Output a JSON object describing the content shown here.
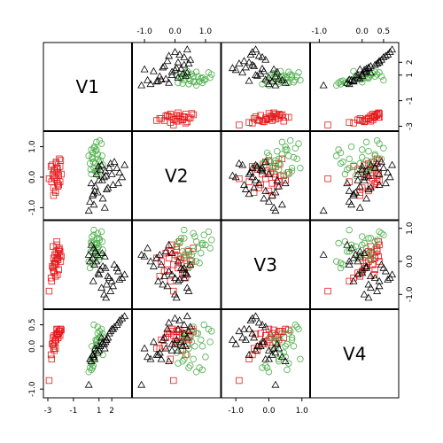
{
  "chart_data": {
    "type": "scatter",
    "matrix": "pairs",
    "variables": [
      "V1",
      "V2",
      "V3",
      "V4"
    ],
    "ranges": {
      "V1": [
        -3.0,
        3.2
      ],
      "V2": [
        -1.25,
        1.35
      ],
      "V3": [
        -1.3,
        1.1
      ],
      "V4": [
        -1.1,
        0.75
      ]
    },
    "axis_ticks": {
      "V1": [
        -3,
        -1,
        1,
        2
      ],
      "V2": [
        -1.0,
        0.0,
        1.0
      ],
      "V3": [
        -1.0,
        0.0,
        1.0
      ],
      "V4": [
        -1.0,
        0.0,
        0.5
      ]
    },
    "tick_labels": {
      "V1": [
        "-3",
        "-1",
        "1",
        "2"
      ],
      "V2": [
        "-1.0",
        "0.0",
        "1.0"
      ],
      "V3": [
        "-1.0",
        "0.0",
        "1.0"
      ],
      "V4": [
        "-1.0",
        "0.0",
        "0.5"
      ]
    },
    "axis_sides": {
      "top": [
        "V2",
        "V4"
      ],
      "right": [
        "V1",
        "V3"
      ],
      "bottom": [
        "V1",
        "V3"
      ],
      "left": [
        "V2",
        "V4"
      ]
    },
    "series": [
      {
        "markers": "square",
        "color": "#e41a1c",
        "points": [
          [
            -2.5,
            -0.05,
            -0.1,
            0.25
          ],
          [
            -2.3,
            0.3,
            0.1,
            0.3
          ],
          [
            -2.2,
            -0.3,
            0.25,
            0.2
          ],
          [
            -2.6,
            0.1,
            -0.2,
            0.05
          ],
          [
            -2.0,
            0.55,
            0.0,
            0.4
          ],
          [
            -2.4,
            -0.5,
            -0.45,
            -0.05
          ],
          [
            -2.15,
            0.05,
            0.35,
            0.35
          ],
          [
            -2.7,
            -0.15,
            -0.6,
            -0.3
          ],
          [
            -2.05,
            0.35,
            0.2,
            0.25
          ],
          [
            -2.45,
            0.2,
            -0.05,
            0.1
          ],
          [
            -2.25,
            -0.2,
            0.1,
            0.3
          ],
          [
            -2.9,
            -0.05,
            -0.9,
            -0.8
          ],
          [
            -2.1,
            0.6,
            0.4,
            0.35
          ],
          [
            -2.35,
            0.45,
            0.3,
            0.15
          ],
          [
            -2.55,
            -0.35,
            -0.3,
            0.0
          ],
          [
            -2.2,
            0.15,
            0.05,
            0.2
          ],
          [
            -2.65,
            0.4,
            -0.15,
            0.05
          ],
          [
            -2.3,
            -0.1,
            0.5,
            0.4
          ],
          [
            -1.95,
            0.1,
            0.15,
            0.38
          ],
          [
            -2.5,
            0.25,
            -0.35,
            -0.1
          ],
          [
            -2.4,
            -0.45,
            0.0,
            0.15
          ],
          [
            -2.6,
            0.05,
            0.45,
            0.2
          ],
          [
            -2.15,
            -0.25,
            -0.25,
            0.3
          ],
          [
            -2.75,
            0.35,
            -0.5,
            -0.2
          ],
          [
            -2.05,
            -0.15,
            0.3,
            0.35
          ],
          [
            -2.35,
            0.5,
            -0.1,
            0.25
          ],
          [
            -2.45,
            0.0,
            0.2,
            0.1
          ],
          [
            -2.25,
            0.3,
            -0.4,
            0.28
          ],
          [
            -2.55,
            -0.6,
            0.1,
            -0.05
          ],
          [
            -2.3,
            0.15,
            0.6,
            0.38
          ]
        ]
      },
      {
        "markers": "circle",
        "color": "#4daf4a",
        "points": [
          [
            0.5,
            0.6,
            0.3,
            -0.3
          ],
          [
            0.8,
            0.9,
            0.5,
            0.0
          ],
          [
            1.0,
            0.3,
            0.7,
            0.2
          ],
          [
            0.3,
            0.45,
            -0.2,
            -0.5
          ],
          [
            1.2,
            1.1,
            0.9,
            0.4
          ],
          [
            0.7,
            0.2,
            0.1,
            -0.1
          ],
          [
            0.9,
            0.75,
            0.4,
            0.3
          ],
          [
            0.4,
            0.1,
            0.6,
            -0.4
          ],
          [
            1.1,
            0.55,
            0.2,
            0.1
          ],
          [
            0.6,
            0.95,
            0.8,
            0.5
          ],
          [
            1.3,
            0.4,
            0.35,
            -0.2
          ],
          [
            0.2,
            0.7,
            0.0,
            -0.6
          ],
          [
            0.85,
            0.15,
            0.55,
            0.05
          ],
          [
            1.05,
            1.2,
            0.65,
            0.35
          ],
          [
            0.55,
            0.5,
            -0.1,
            -0.45
          ],
          [
            0.75,
            0.85,
            0.25,
            0.15
          ],
          [
            0.95,
            0.05,
            0.45,
            -0.15
          ],
          [
            0.45,
            0.65,
            0.75,
            0.0
          ],
          [
            1.15,
            0.35,
            0.15,
            0.25
          ],
          [
            0.65,
            1.0,
            0.5,
            -0.25
          ],
          [
            0.35,
            0.25,
            0.3,
            -0.35
          ],
          [
            0.9,
            0.6,
            0.85,
            0.45
          ],
          [
            0.5,
            0.8,
            -0.05,
            -0.5
          ],
          [
            1.25,
            0.7,
            0.6,
            0.3
          ],
          [
            0.7,
            0.45,
            0.2,
            -0.05
          ],
          [
            0.8,
            1.15,
            0.4,
            0.1
          ],
          [
            0.6,
            0.3,
            0.95,
            -0.3
          ],
          [
            1.0,
            0.5,
            0.05,
            0.2
          ],
          [
            0.4,
            0.9,
            0.55,
            -0.55
          ],
          [
            0.85,
            0.2,
            0.7,
            0.15
          ]
        ]
      },
      {
        "markers": "triangle",
        "color": "#000000",
        "points": [
          [
            1.0,
            -0.1,
            -0.4,
            -0.1
          ],
          [
            1.5,
            0.2,
            -0.2,
            0.1
          ],
          [
            0.5,
            -0.6,
            0.1,
            -0.2
          ],
          [
            2.0,
            0.1,
            -0.6,
            0.4
          ],
          [
            0.7,
            -0.3,
            0.3,
            -0.05
          ],
          [
            1.2,
            0.4,
            -0.8,
            0.2
          ],
          [
            2.5,
            -0.2,
            -0.3,
            0.55
          ],
          [
            0.3,
            -0.8,
            0.0,
            -0.3
          ],
          [
            1.8,
            0.3,
            -0.5,
            0.3
          ],
          [
            0.9,
            -0.5,
            0.2,
            -0.15
          ],
          [
            1.4,
            0.0,
            -1.0,
            0.05
          ],
          [
            2.2,
            0.5,
            -0.1,
            0.45
          ],
          [
            0.6,
            -0.9,
            0.4,
            -0.25
          ],
          [
            1.6,
            -0.4,
            -0.7,
            0.15
          ],
          [
            1.1,
            0.25,
            -0.25,
            0.0
          ],
          [
            2.8,
            0.0,
            -0.5,
            0.65
          ],
          [
            0.4,
            -0.2,
            0.5,
            -0.35
          ],
          [
            1.3,
            -0.7,
            -0.15,
            0.1
          ],
          [
            1.9,
            0.45,
            -0.9,
            0.35
          ],
          [
            0.8,
            0.1,
            0.0,
            -0.1
          ],
          [
            1.7,
            -0.35,
            -0.45,
            0.2
          ],
          [
            2.4,
            0.3,
            -0.2,
            0.5
          ],
          [
            0.55,
            -0.55,
            -0.6,
            -0.2
          ],
          [
            1.25,
            -0.1,
            0.25,
            0.05
          ],
          [
            2.1,
            -0.25,
            -0.75,
            0.4
          ],
          [
            0.95,
            0.35,
            -0.35,
            0.0
          ],
          [
            1.45,
            -1.0,
            0.15,
            -0.05
          ],
          [
            2.6,
            0.15,
            -0.55,
            0.6
          ],
          [
            0.65,
            -0.45,
            -0.1,
            -0.3
          ],
          [
            1.55,
            0.05,
            -1.1,
            0.15
          ],
          [
            0.2,
            -1.1,
            0.2,
            -0.9
          ],
          [
            3.0,
            0.4,
            -0.4,
            0.7
          ]
        ]
      }
    ]
  }
}
